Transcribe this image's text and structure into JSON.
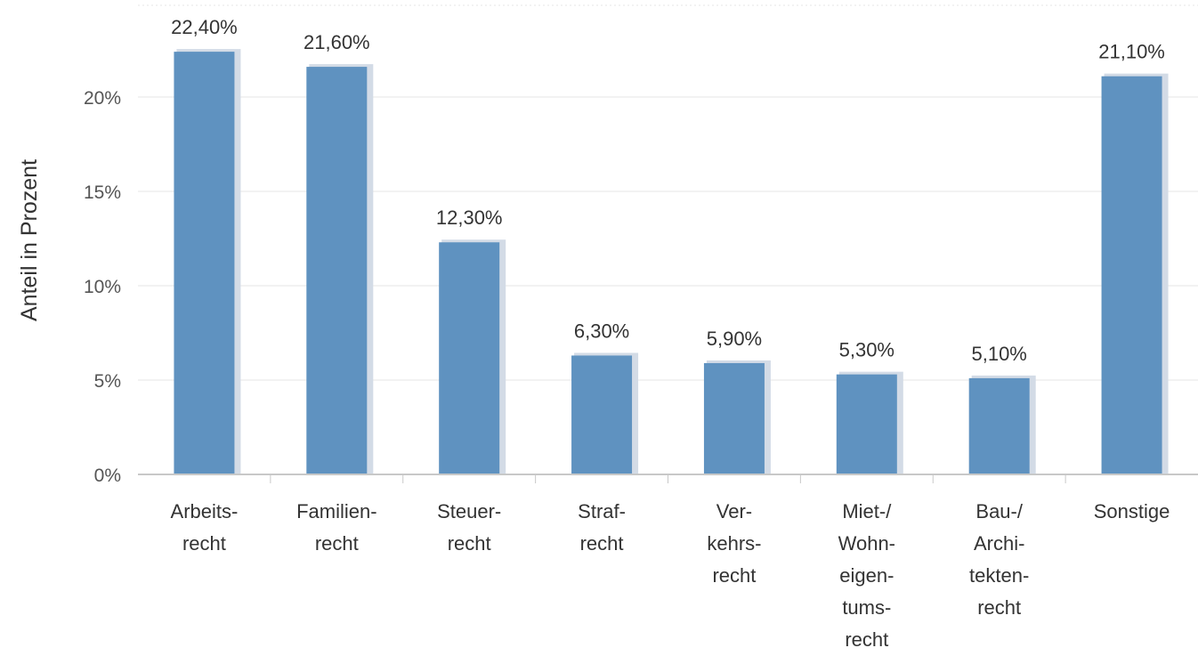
{
  "chart_data": {
    "type": "bar",
    "ylabel": "Anteil in Prozent",
    "categories": [
      [
        "Arbeits-",
        "recht"
      ],
      [
        "Familien-",
        "recht"
      ],
      [
        "Steuer-",
        "recht"
      ],
      [
        "Straf-",
        "recht"
      ],
      [
        "Ver-",
        "kehrs-",
        "recht"
      ],
      [
        "Miet-/",
        "Wohn-",
        "eigen-",
        "tums-",
        "recht"
      ],
      [
        "Bau-/",
        "Archi-",
        "tekten-",
        "recht"
      ],
      [
        "Sonstige"
      ]
    ],
    "values": [
      22.4,
      21.6,
      12.3,
      6.3,
      5.9,
      5.3,
      5.1,
      21.1
    ],
    "data_labels": [
      "22,40%",
      "21,60%",
      "12,30%",
      "6,30%",
      "5,90%",
      "5,30%",
      "5,10%",
      "21,10%"
    ],
    "yticks": [
      {
        "value": 0,
        "label": "0%"
      },
      {
        "value": 5,
        "label": "5%"
      },
      {
        "value": 10,
        "label": "10%"
      },
      {
        "value": 15,
        "label": "15%"
      },
      {
        "value": 20,
        "label": "20%"
      }
    ],
    "ylim": [
      0,
      25
    ],
    "grid": true,
    "colors": {
      "bar": "#5f92c0",
      "bar_shadow": "#d3dbe6",
      "grid": "#e6e6e6",
      "axis": "#c8c8c8",
      "text": "#333333",
      "tick_text": "#555555"
    }
  }
}
